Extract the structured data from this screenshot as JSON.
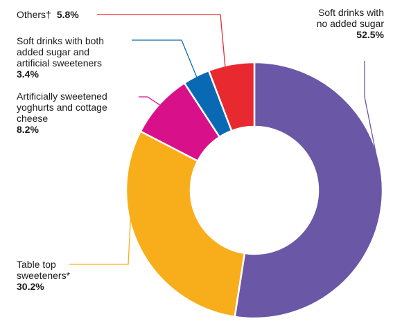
{
  "chart_data": {
    "type": "pie",
    "variant": "donut",
    "title": "",
    "slices": [
      {
        "label": "Soft drinks with no added sugar",
        "value": 52.5,
        "display": "52.5%",
        "color": "#6a57a5"
      },
      {
        "label": "Table top sweeteners*",
        "value": 30.2,
        "display": "30.2%",
        "color": "#f8ae1b"
      },
      {
        "label": "Artificially sweetened yoghurts and cottage cheese",
        "value": 8.2,
        "display": "8.2%",
        "color": "#d8118a"
      },
      {
        "label": "Soft drinks with both added sugar and artificial sweeteners",
        "value": 3.4,
        "display": "3.4%",
        "color": "#0a69b3"
      },
      {
        "label": "Others†",
        "value": 5.8,
        "display": "5.8%",
        "color": "#e8292f"
      }
    ],
    "labels_wrapped": [
      [
        "Soft drinks with",
        "no added sugar"
      ],
      [
        "Table top",
        "sweeteners*"
      ],
      [
        "Artificially sweetened",
        "yoghurts and cottage",
        "cheese"
      ],
      [
        "Soft drinks with both",
        "added sugar and",
        "artificial sweeteners"
      ],
      [
        "Others†"
      ]
    ],
    "legend": "none",
    "leader_lines": true
  }
}
